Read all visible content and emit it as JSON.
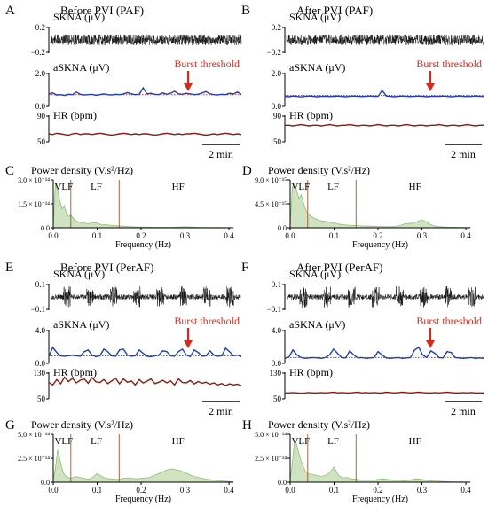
{
  "colors": {
    "trace": "#111111",
    "asnka_line": "#1f3fb4",
    "threshold": "#d42a1e",
    "hr_line": "#8b1a10",
    "psd_fill": "#cfe3c0",
    "psd_stroke": "#8fbf78",
    "band_divider": "#a0522d"
  },
  "chart_data": [
    {
      "panel": "A",
      "title": "Before PVI (PAF)",
      "type": "line",
      "rows": [
        {
          "label": "SKNA (μV)",
          "ticks": [
            "0.2",
            "−0.2"
          ]
        },
        {
          "label": "aSKNA (μV)",
          "ticks": [
            "2.0",
            "0.0"
          ],
          "annotation": "Burst threshold",
          "threshold": 0.7,
          "values": [
            0.75,
            0.8,
            0.68,
            0.7,
            0.65,
            0.72,
            0.7,
            0.85,
            0.72,
            0.68,
            0.7,
            0.72,
            0.66,
            0.7,
            0.75,
            0.7,
            0.68,
            0.72,
            0.7,
            0.74,
            0.82,
            0.75,
            0.7,
            0.72,
            1.1,
            0.75,
            0.78,
            0.72,
            0.7,
            0.8,
            0.72,
            0.78,
            0.9,
            0.75,
            0.72,
            0.78,
            0.74,
            0.7,
            0.72,
            0.8,
            0.88,
            0.75,
            0.7,
            0.68,
            0.72,
            0.7,
            0.78,
            0.74,
            0.85,
            0.72
          ]
        },
        {
          "label": "HR (bpm)",
          "ticks": [
            "90",
            "50"
          ],
          "values": [
            62,
            61,
            63,
            62,
            61,
            60,
            62,
            63,
            61,
            62,
            62,
            61,
            62,
            63,
            62,
            61,
            60,
            61,
            62,
            63,
            62,
            61,
            62,
            61,
            62,
            62,
            61,
            60,
            61,
            62,
            63,
            62,
            61,
            62,
            61,
            62,
            62,
            63,
            62,
            61,
            60,
            61,
            62,
            61,
            62,
            63,
            62,
            61,
            62,
            61
          ]
        }
      ],
      "scale_bar": "2 min"
    },
    {
      "panel": "B",
      "title": "After PVI (PAF)",
      "type": "line",
      "rows": [
        {
          "label": "SKNA (μV)",
          "ticks": [
            "0.2",
            "−0.2"
          ]
        },
        {
          "label": "aSKNA (μV)",
          "ticks": [
            "2.0",
            "0.0"
          ],
          "annotation": "Burst threshold",
          "threshold": 0.65,
          "values": [
            0.6,
            0.58,
            0.62,
            0.6,
            0.57,
            0.6,
            0.62,
            0.6,
            0.58,
            0.6,
            0.61,
            0.59,
            0.6,
            0.62,
            0.6,
            0.58,
            0.6,
            0.62,
            0.6,
            0.59,
            0.6,
            0.62,
            0.6,
            0.6,
            0.95,
            0.62,
            0.6,
            0.58,
            0.6,
            0.62,
            0.6,
            0.59,
            0.6,
            0.62,
            0.6,
            0.58,
            0.6,
            0.61,
            0.6,
            0.62,
            0.6,
            0.58,
            0.6,
            0.62,
            0.6,
            0.59,
            0.6,
            0.62,
            0.6,
            0.6
          ]
        },
        {
          "label": "HR (bpm)",
          "ticks": [
            "90",
            "50"
          ],
          "values": [
            75,
            75,
            74,
            75,
            76,
            75,
            74,
            75,
            75,
            74,
            75,
            76,
            75,
            74,
            75,
            75,
            76,
            75,
            74,
            75,
            75,
            74,
            75,
            76,
            75,
            74,
            75,
            75,
            74,
            75,
            76,
            75,
            74,
            75,
            75,
            74,
            75,
            75,
            76,
            75,
            74,
            75,
            75,
            74,
            75,
            76,
            75,
            74,
            75,
            75
          ]
        }
      ],
      "scale_bar": "2 min"
    },
    {
      "panel": "C",
      "title": "Power density (V.s²/Hz)",
      "type": "area",
      "y_ticks": [
        "3.0 × 10⁻¹⁴",
        "1.5 × 10⁻¹⁴",
        "0.0"
      ],
      "ylim": [
        0,
        3e-14
      ],
      "xlabel": "Frequency (Hz)",
      "x_ticks": [
        "0.0",
        "0.1",
        "0.2",
        "0.3",
        "0.4"
      ],
      "xlim": [
        0,
        0.41
      ],
      "bands": [
        "VLF",
        "LF",
        "HF"
      ],
      "band_edges": [
        0.04,
        0.15
      ],
      "x": [
        0,
        0.005,
        0.01,
        0.015,
        0.02,
        0.025,
        0.03,
        0.035,
        0.04,
        0.05,
        0.06,
        0.07,
        0.08,
        0.09,
        0.1,
        0.11,
        0.12,
        0.13,
        0.14,
        0.15,
        0.16,
        0.17,
        0.18,
        0.19,
        0.2,
        0.21,
        0.22,
        0.23,
        0.24,
        0.25,
        0.26,
        0.27,
        0.28,
        0.29,
        0.3,
        0.31,
        0.32,
        0.33,
        0.34,
        0.35,
        0.36,
        0.37,
        0.38,
        0.39,
        0.4,
        0.41
      ],
      "values": [
        2e-15,
        2.8e-14,
        2.3e-14,
        1.7e-14,
        1.2e-14,
        1.4e-14,
        9e-15,
        7e-15,
        8e-15,
        4.5e-15,
        3.5e-15,
        3e-15,
        2.5e-15,
        3.2e-15,
        3e-15,
        1.8e-15,
        2e-15,
        1.5e-15,
        1.2e-15,
        1.2e-15,
        1e-15,
        8e-16,
        6e-16,
        5e-16,
        5e-16,
        4e-16,
        4e-16,
        3e-16,
        3e-16,
        3e-16,
        3e-16,
        3e-16,
        4e-16,
        5e-16,
        6e-16,
        5e-16,
        4e-16,
        3e-16,
        2e-16,
        2e-16,
        2e-16,
        2e-16,
        2e-16,
        1e-16,
        1e-16,
        1e-16
      ]
    },
    {
      "panel": "D",
      "title": "Power density (V.s²/Hz)",
      "type": "area",
      "y_ticks": [
        "9.0 × 10⁻¹⁵",
        "4.5 × 10⁻¹⁵",
        "0.0"
      ],
      "ylim": [
        0,
        9e-15
      ],
      "xlabel": "Frequency (Hz)",
      "x_ticks": [
        "0.0",
        "0.1",
        "0.2",
        "0.3",
        "0.4"
      ],
      "xlim": [
        0,
        0.41
      ],
      "bands": [
        "VLF",
        "LF",
        "HF"
      ],
      "band_edges": [
        0.04,
        0.15
      ],
      "x": [
        0,
        0.005,
        0.01,
        0.015,
        0.02,
        0.025,
        0.03,
        0.035,
        0.04,
        0.05,
        0.06,
        0.07,
        0.08,
        0.09,
        0.1,
        0.11,
        0.12,
        0.13,
        0.14,
        0.15,
        0.16,
        0.17,
        0.18,
        0.19,
        0.2,
        0.21,
        0.22,
        0.23,
        0.24,
        0.25,
        0.26,
        0.27,
        0.28,
        0.29,
        0.3,
        0.31,
        0.32,
        0.33,
        0.34,
        0.35,
        0.36,
        0.37,
        0.38,
        0.39,
        0.4,
        0.41
      ],
      "values": [
        5e-16,
        7.6e-15,
        8.2e-15,
        7e-15,
        5.5e-15,
        6.2e-15,
        4.8e-15,
        3.5e-15,
        2.6e-15,
        2e-15,
        1.6e-15,
        1.3e-15,
        1.2e-15,
        1e-15,
        9e-16,
        7e-16,
        6e-16,
        5e-16,
        4.5e-16,
        4e-16,
        3.5e-16,
        3e-16,
        3e-16,
        2.8e-16,
        2.5e-16,
        2.2e-16,
        2e-16,
        2e-16,
        2.5e-16,
        4e-16,
        7e-16,
        8e-16,
        9e-16,
        1.2e-15,
        1.5e-15,
        1.1e-15,
        6e-16,
        3e-16,
        2e-16,
        1.5e-16,
        1e-16,
        1e-16,
        8e-17,
        6e-17,
        5e-17,
        5e-17
      ]
    },
    {
      "panel": "E",
      "title": "Before PVI (PerAF)",
      "type": "line",
      "rows": [
        {
          "label": "SKNA (μV)",
          "ticks": [
            "0.1",
            "−0.1"
          ]
        },
        {
          "label": "aSKNA (μV)",
          "ticks": [
            "4.0",
            "0.0"
          ],
          "annotation": "Burst threshold",
          "threshold": 0.9,
          "values": [
            0.8,
            1.9,
            1.3,
            0.9,
            0.85,
            0.9,
            1.0,
            0.9,
            0.85,
            1.4,
            1.6,
            1.0,
            0.8,
            0.9,
            1.7,
            1.4,
            0.9,
            0.85,
            1.6,
            1.7,
            1.0,
            0.85,
            0.9,
            1.6,
            1.2,
            0.85,
            0.8,
            0.9,
            1.0,
            1.5,
            1.4,
            0.9,
            0.85,
            1.4,
            1.7,
            1.0,
            0.8,
            1.6,
            1.3,
            0.85,
            0.9,
            1.5,
            1.0,
            0.85,
            0.9,
            1.8,
            1.4,
            0.9,
            1.0,
            0.8
          ]
        },
        {
          "label": "HR (bpm)",
          "ticks": [
            "130",
            "50"
          ],
          "values": [
            100,
            92,
            108,
            95,
            115,
            102,
            112,
            98,
            106,
            110,
            97,
            114,
            101,
            99,
            108,
            96,
            104,
            112,
            95,
            110,
            100,
            104,
            92,
            108,
            98,
            103,
            110,
            96,
            100,
            106,
            98,
            104,
            92,
            110,
            99,
            98,
            105,
            95,
            102,
            97,
            100,
            94,
            98,
            92,
            96,
            90,
            95,
            92,
            94,
            90
          ]
        }
      ],
      "scale_bar": "2 min"
    },
    {
      "panel": "F",
      "title": "After PVI (PerAF)",
      "type": "line",
      "rows": [
        {
          "label": "SKNA (μV)",
          "ticks": [
            "0.1",
            "−0.1"
          ]
        },
        {
          "label": "aSKNA (μV)",
          "ticks": [
            "4.0",
            "0.0"
          ],
          "annotation": "Burst threshold",
          "threshold": 0.7,
          "values": [
            0.6,
            0.75,
            1.6,
            1.0,
            0.7,
            0.6,
            0.65,
            0.7,
            0.65,
            0.6,
            0.7,
            1.0,
            1.7,
            1.2,
            0.7,
            0.65,
            1.5,
            1.0,
            0.65,
            0.7,
            0.6,
            0.65,
            0.7,
            1.4,
            1.0,
            0.65,
            0.6,
            0.65,
            0.7,
            0.6,
            0.65,
            0.7,
            1.6,
            1.9,
            1.0,
            0.7,
            1.5,
            1.2,
            0.7,
            0.65,
            1.4,
            1.3,
            0.7,
            0.65,
            0.6,
            0.65,
            0.7,
            0.6,
            0.65,
            0.6
          ]
        },
        {
          "label": "HR (bpm)",
          "ticks": [
            "130",
            "50"
          ],
          "values": [
            68,
            68,
            69,
            68,
            67,
            68,
            69,
            68,
            68,
            69,
            68,
            69,
            70,
            68,
            69,
            68,
            68,
            69,
            70,
            68,
            69,
            68,
            69,
            68,
            68,
            70,
            69,
            68,
            69,
            70,
            69,
            68,
            69,
            70,
            69,
            68,
            68,
            69,
            68,
            69,
            70,
            69,
            68,
            68,
            69,
            68,
            69,
            68,
            68,
            68
          ]
        }
      ],
      "scale_bar": "2 min"
    },
    {
      "panel": "G",
      "title": "Power density (V.s²/Hz)",
      "type": "area",
      "y_ticks": [
        "5.0 × 10⁻¹⁴",
        "2.5 × 10⁻¹⁴",
        "0.0"
      ],
      "ylim": [
        0,
        5e-14
      ],
      "xlabel": "Frequency (Hz)",
      "x_ticks": [
        "0.0",
        "0.1",
        "0.2",
        "0.3",
        "0.4"
      ],
      "xlim": [
        0,
        0.41
      ],
      "bands": [
        "VLF",
        "LF",
        "HF"
      ],
      "band_edges": [
        0.04,
        0.15
      ],
      "x": [
        0,
        0.005,
        0.01,
        0.015,
        0.02,
        0.025,
        0.03,
        0.035,
        0.04,
        0.05,
        0.06,
        0.07,
        0.08,
        0.09,
        0.1,
        0.11,
        0.12,
        0.13,
        0.14,
        0.15,
        0.16,
        0.17,
        0.18,
        0.19,
        0.2,
        0.21,
        0.22,
        0.23,
        0.24,
        0.25,
        0.26,
        0.27,
        0.28,
        0.29,
        0.3,
        0.31,
        0.32,
        0.33,
        0.34,
        0.35,
        0.36,
        0.37,
        0.38,
        0.39,
        0.4,
        0.41
      ],
      "values": [
        2e-15,
        1.5e-14,
        3.4e-14,
        2.4e-14,
        1.4e-14,
        8e-15,
        6e-15,
        5e-15,
        4e-15,
        6e-15,
        5e-15,
        4e-15,
        3e-15,
        5e-15,
        9e-15,
        6e-15,
        4e-15,
        3.5e-15,
        3e-15,
        3e-15,
        4e-15,
        4.5e-15,
        4e-15,
        3.5e-15,
        4e-15,
        4.5e-15,
        5e-15,
        7e-15,
        9e-15,
        1.1e-14,
        1.3e-14,
        1.4e-14,
        1.3e-14,
        1.2e-14,
        1e-14,
        8e-15,
        6e-15,
        5e-15,
        4e-15,
        3e-15,
        2.5e-15,
        2e-15,
        1.5e-15,
        1e-15,
        8e-16,
        5e-16
      ]
    },
    {
      "panel": "H",
      "title": "Power density (V.s²/Hz)",
      "type": "area",
      "y_ticks": [
        "5.0 × 10⁻¹⁴",
        "2.5 × 10⁻¹⁴",
        "0.0"
      ],
      "ylim": [
        0,
        5e-14
      ],
      "xlabel": "Frequency (Hz)",
      "x_ticks": [
        "0.0",
        "0.1",
        "0.2",
        "0.3",
        "0.4"
      ],
      "xlim": [
        0,
        0.41
      ],
      "bands": [
        "VLF",
        "LF",
        "HF"
      ],
      "band_edges": [
        0.04,
        0.15
      ],
      "x": [
        0,
        0.005,
        0.01,
        0.015,
        0.02,
        0.025,
        0.03,
        0.035,
        0.04,
        0.05,
        0.06,
        0.07,
        0.08,
        0.09,
        0.1,
        0.11,
        0.12,
        0.13,
        0.14,
        0.15,
        0.16,
        0.17,
        0.18,
        0.19,
        0.2,
        0.21,
        0.22,
        0.23,
        0.24,
        0.25,
        0.26,
        0.27,
        0.28,
        0.29,
        0.3,
        0.31,
        0.32,
        0.33,
        0.34,
        0.35,
        0.36,
        0.37,
        0.38,
        0.39,
        0.4,
        0.41
      ],
      "values": [
        3e-15,
        2e-14,
        4.5e-14,
        3.9e-14,
        3e-14,
        2.2e-14,
        1.6e-14,
        1.1e-14,
        9e-15,
        8e-15,
        7e-15,
        6e-15,
        7e-15,
        1e-14,
        1.6e-14,
        7e-15,
        4.5e-15,
        5e-15,
        3.5e-15,
        3e-15,
        2.5e-15,
        2e-15,
        2.5e-15,
        2e-15,
        3e-15,
        3.5e-15,
        3e-15,
        2.5e-15,
        2e-15,
        2e-15,
        1.5e-15,
        2e-15,
        3e-15,
        3.5e-15,
        3e-15,
        2e-15,
        1.5e-15,
        1e-15,
        1e-15,
        8e-16,
        6e-16,
        5e-16,
        4e-16,
        3e-16,
        2e-16,
        2e-16
      ]
    }
  ]
}
